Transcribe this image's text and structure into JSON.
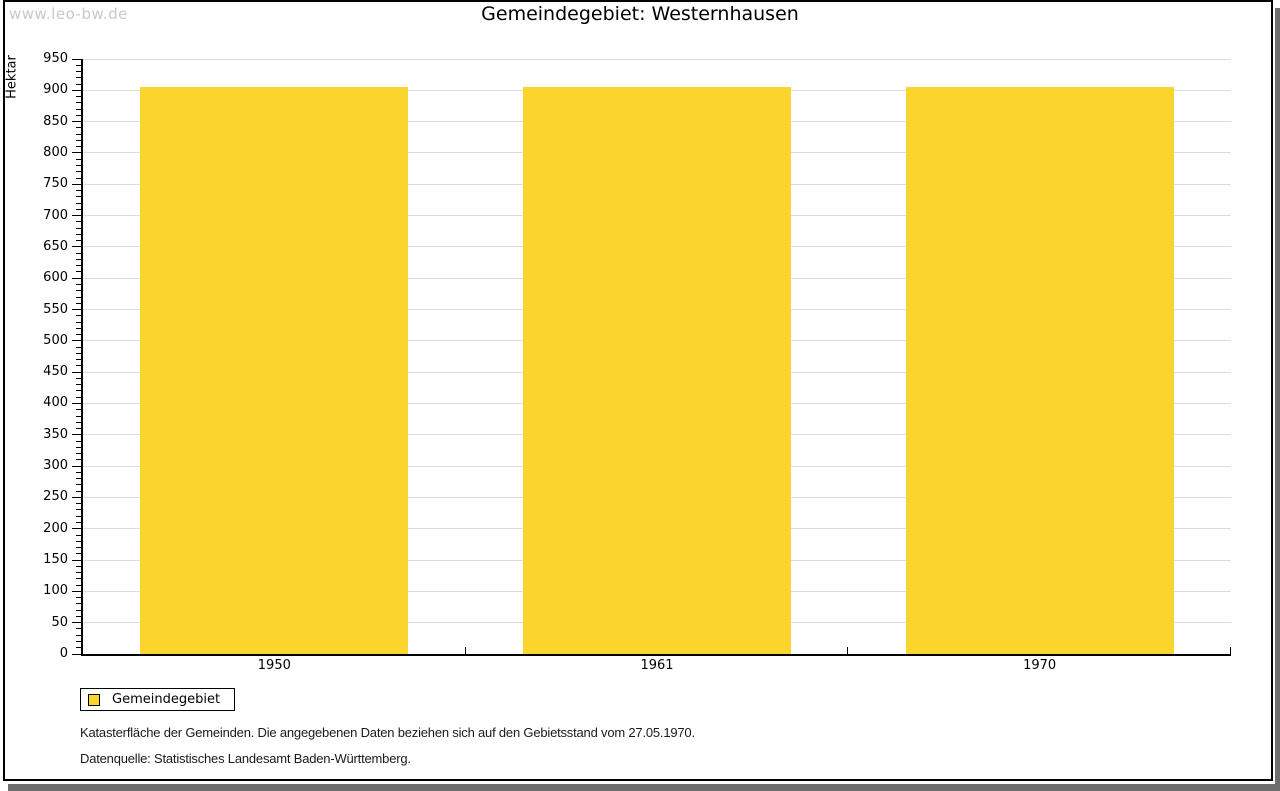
{
  "watermark": {
    "text": "www.leo-bw.de"
  },
  "title": "Gemeindegebiet: Westernhausen",
  "chart_data": {
    "type": "bar",
    "title": "Gemeindegebiet: Westernhausen",
    "categories": [
      "1950",
      "1961",
      "1970"
    ],
    "series": [
      {
        "name": "Gemeindegebiet",
        "values": [
          905,
          905,
          905
        ]
      }
    ],
    "xlabel": "",
    "ylabel": "Hektar",
    "ylim": [
      0,
      950
    ],
    "y_major_step": 50,
    "y_minor_step": 10,
    "grid": true,
    "legend_position": "bottom-left",
    "bar_color": "#fcd42e",
    "gridline_color": "#dcdcdc"
  },
  "legend": {
    "items": [
      {
        "label": "Gemeindegebiet",
        "color": "#fcd42e"
      }
    ]
  },
  "footnotes": {
    "line1": "Katasterfläche der Gemeinden. Die angegebenen Daten beziehen sich auf den Gebietsstand vom 27.05.1970.",
    "line2": "Datenquelle: Statistisches Landesamt Baden-Württemberg."
  }
}
